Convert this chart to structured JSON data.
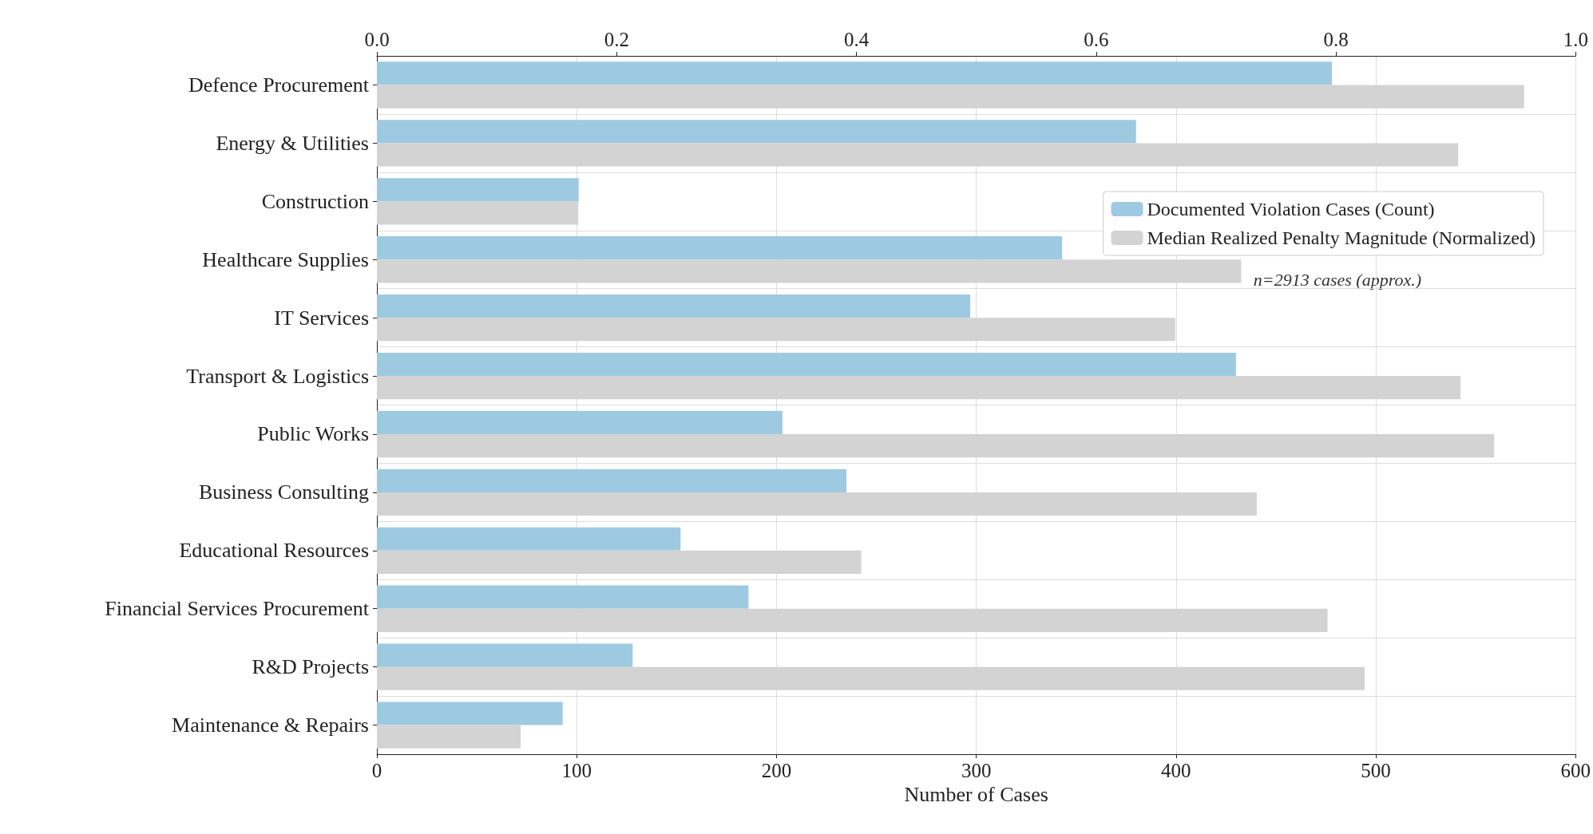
{
  "chart_data": {
    "type": "bar",
    "orientation": "horizontal",
    "xlabel": "Number of Cases",
    "categories": [
      "Defence Procurement",
      "Energy & Utilities",
      "Construction",
      "Healthcare Supplies",
      "IT Services",
      "Transport & Logistics",
      "Public Works",
      "Business Consulting",
      "Educational Resources",
      "Financial Services Procurement",
      "R&D Projects",
      "Maintenance & Repairs"
    ],
    "series": [
      {
        "name": "Documented Violation Cases (Count)",
        "color": "#9ecae1",
        "values": [
          478,
          380,
          101,
          343,
          297,
          430,
          203,
          235,
          152,
          186,
          128,
          93
        ]
      },
      {
        "name": "Median Realized Penalty Magnitude (Normalized)",
        "color": "#d3d3d3",
        "axis": "x2",
        "values": [
          0.957,
          0.902,
          0.168,
          0.721,
          0.666,
          0.904,
          0.932,
          0.734,
          0.404,
          0.793,
          0.824,
          0.12
        ]
      }
    ],
    "xlim": [
      0,
      600
    ],
    "xticks": [
      0,
      100,
      200,
      300,
      400,
      500,
      600
    ],
    "x2lim": [
      0,
      1
    ],
    "x2ticks": [
      {
        "value": 0,
        "label": "0.0"
      },
      {
        "value": 0.2,
        "label": "0.2"
      },
      {
        "value": 0.4,
        "label": "0.4"
      },
      {
        "value": 0.6,
        "label": "0.6"
      },
      {
        "value": 0.8,
        "label": "0.8"
      },
      {
        "value": 1,
        "label": "1.0"
      }
    ],
    "annotations": [
      "n=2913 cases (approx.)"
    ],
    "legend": "top right",
    "grid": true
  }
}
